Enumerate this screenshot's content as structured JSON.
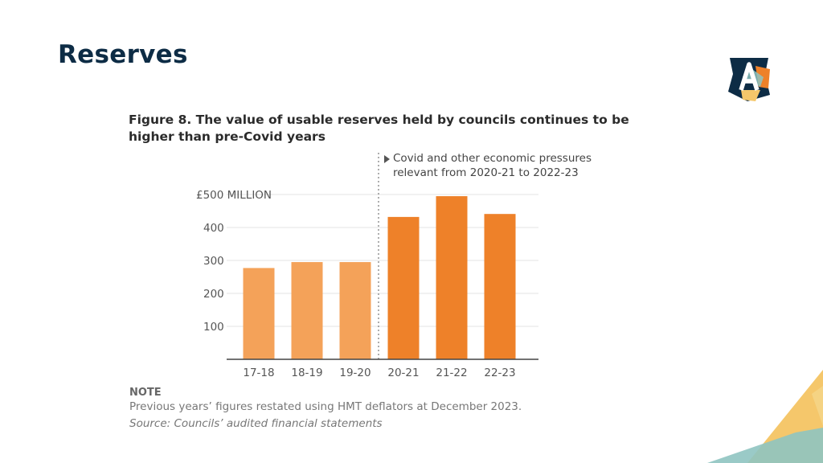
{
  "slide": {
    "title": "Reserves"
  },
  "figure": {
    "title_line1": "Figure 8. The value of usable reserves held by councils continues to be",
    "title_line2": "higher than pre-Covid years",
    "annotation_line1": "Covid and other economic pressures",
    "annotation_line2": "relevant from 2020-21 to 2022-23",
    "note_heading": "NOTE",
    "note_text": "Previous years’ figures restated using HMT deflators at December 2023.",
    "source_text": "Source: Councils’ audited financial statements"
  },
  "colors": {
    "pre_covid_bar": "#f4a259",
    "covid_bar": "#ee8129",
    "title_navy": "#0d2c45",
    "gridline": "#e3e3e3",
    "axis": "#444444"
  },
  "chart_data": {
    "type": "bar",
    "title": "Figure 8. The value of usable reserves held by councils continues to be higher than pre-Covid years",
    "categories": [
      "17-18",
      "18-19",
      "19-20",
      "20-21",
      "21-22",
      "22-23"
    ],
    "values": [
      277,
      295,
      295,
      432,
      495,
      441
    ],
    "unit": "£ million",
    "ylim": [
      0,
      500
    ],
    "yticks": [
      100,
      200,
      300,
      400,
      500
    ],
    "ytick_labels": [
      "100",
      "200",
      "300",
      "400",
      "£500 MILLION"
    ],
    "grid": true,
    "xlabel": "",
    "ylabel": "",
    "highlight_from_category": "20-21"
  }
}
